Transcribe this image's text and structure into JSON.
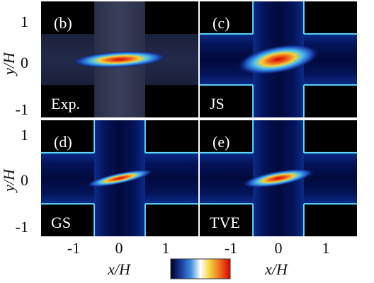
{
  "chart_data": {
    "type": "heatmap",
    "xlabel": "x/H",
    "ylabel": "y/H",
    "xlim": [
      -1.7,
      1.7
    ],
    "ylim": [
      -1.25,
      1.25
    ],
    "x_ticks": [
      "-1",
      "0",
      "1"
    ],
    "y_ticks": [
      "1",
      "0",
      "-1"
    ],
    "colorbar": [
      "#000020",
      "#1a3a9a",
      "#3f8fe0",
      "#ffffff",
      "#f3d23a",
      "#ee6a1e",
      "#d80000"
    ],
    "channel_half_width": 0.55,
    "panels": [
      {
        "tag": "(b)",
        "label": "Exp.",
        "blob_angle_deg": -3,
        "blob_rx": 1.05,
        "blob_ry": 0.18,
        "walls": false
      },
      {
        "tag": "(c)",
        "label": "JS",
        "blob_angle_deg": -10,
        "blob_rx": 0.9,
        "blob_ry": 0.3,
        "walls": true
      },
      {
        "tag": "(d)",
        "label": "GS",
        "blob_angle_deg": -12,
        "blob_rx": 0.75,
        "blob_ry": 0.12,
        "walls": true
      },
      {
        "tag": "(e)",
        "label": "TVE",
        "blob_angle_deg": -10,
        "blob_rx": 0.8,
        "blob_ry": 0.16,
        "walls": true
      }
    ]
  }
}
